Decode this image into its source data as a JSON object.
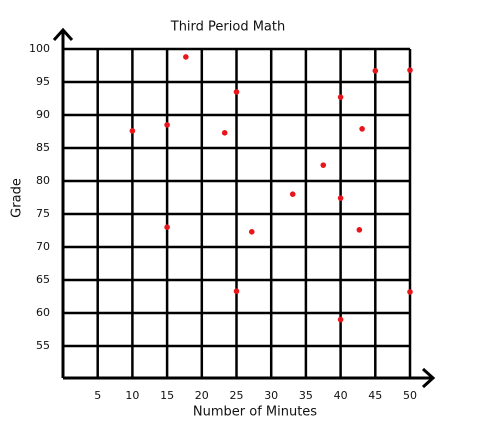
{
  "chart_data": {
    "type": "scatter",
    "title": "Third Period Math",
    "x_label": "Number of Minutes",
    "y_label": "Grade",
    "x": [
      10,
      15,
      15,
      17.7,
      23.3,
      25,
      25,
      27.2,
      33.1,
      37.5,
      40,
      40,
      40,
      42.7,
      43.1,
      45,
      50,
      50
    ],
    "values": [
      87.6,
      88.5,
      73,
      98.8,
      87.3,
      93.5,
      63.3,
      72.3,
      78,
      82.4,
      92.7,
      77.4,
      59,
      72.6,
      87.9,
      96.7,
      96.8,
      63.2
    ],
    "color": "#e8161b",
    "xlim": [
      0,
      50
    ],
    "ylim": [
      50,
      100
    ],
    "xticks": [
      5,
      10,
      15,
      20,
      25,
      30,
      35,
      40,
      45,
      50
    ],
    "yticks": [
      55,
      60,
      65,
      70,
      75,
      80,
      85,
      90,
      95,
      100
    ],
    "grid": true
  }
}
